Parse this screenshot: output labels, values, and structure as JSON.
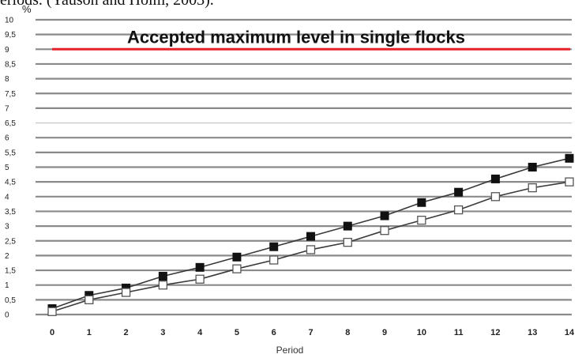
{
  "caption_fragment": "eriods. (Yauson and Holm, 2003).",
  "chart_data": {
    "type": "line",
    "title": "",
    "xlabel": "Period",
    "ylabel": "%",
    "x": [
      0,
      1,
      2,
      3,
      4,
      5,
      6,
      7,
      8,
      9,
      10,
      11,
      12,
      13,
      14
    ],
    "xlim": [
      0,
      14
    ],
    "ylim": [
      0,
      10
    ],
    "y_ticks": [
      "0",
      "0,5",
      "1",
      "1,5",
      "2",
      "2,5",
      "3",
      "3,5",
      "4",
      "4,5",
      "5",
      "5,5",
      "6",
      "6,5",
      "7",
      "7,5",
      "8",
      "8,5",
      "9",
      "9,5",
      "10"
    ],
    "grid": true,
    "series": [
      {
        "marker": "filled-square",
        "values": [
          0.2,
          0.65,
          0.9,
          1.3,
          1.6,
          1.95,
          2.3,
          2.65,
          3.0,
          3.35,
          3.8,
          4.15,
          4.6,
          5.0,
          5.3
        ]
      },
      {
        "marker": "open-square",
        "values": [
          0.1,
          0.5,
          0.75,
          1.0,
          1.2,
          1.55,
          1.85,
          2.2,
          2.45,
          2.85,
          3.2,
          3.55,
          4.0,
          4.3,
          4.5
        ]
      }
    ],
    "reference_line": {
      "label": "Accepted maximum level in single flocks",
      "value": 9,
      "color": "#e8202a"
    },
    "colors": {
      "grid": "#8a8a8a",
      "marker": "#111111"
    }
  }
}
